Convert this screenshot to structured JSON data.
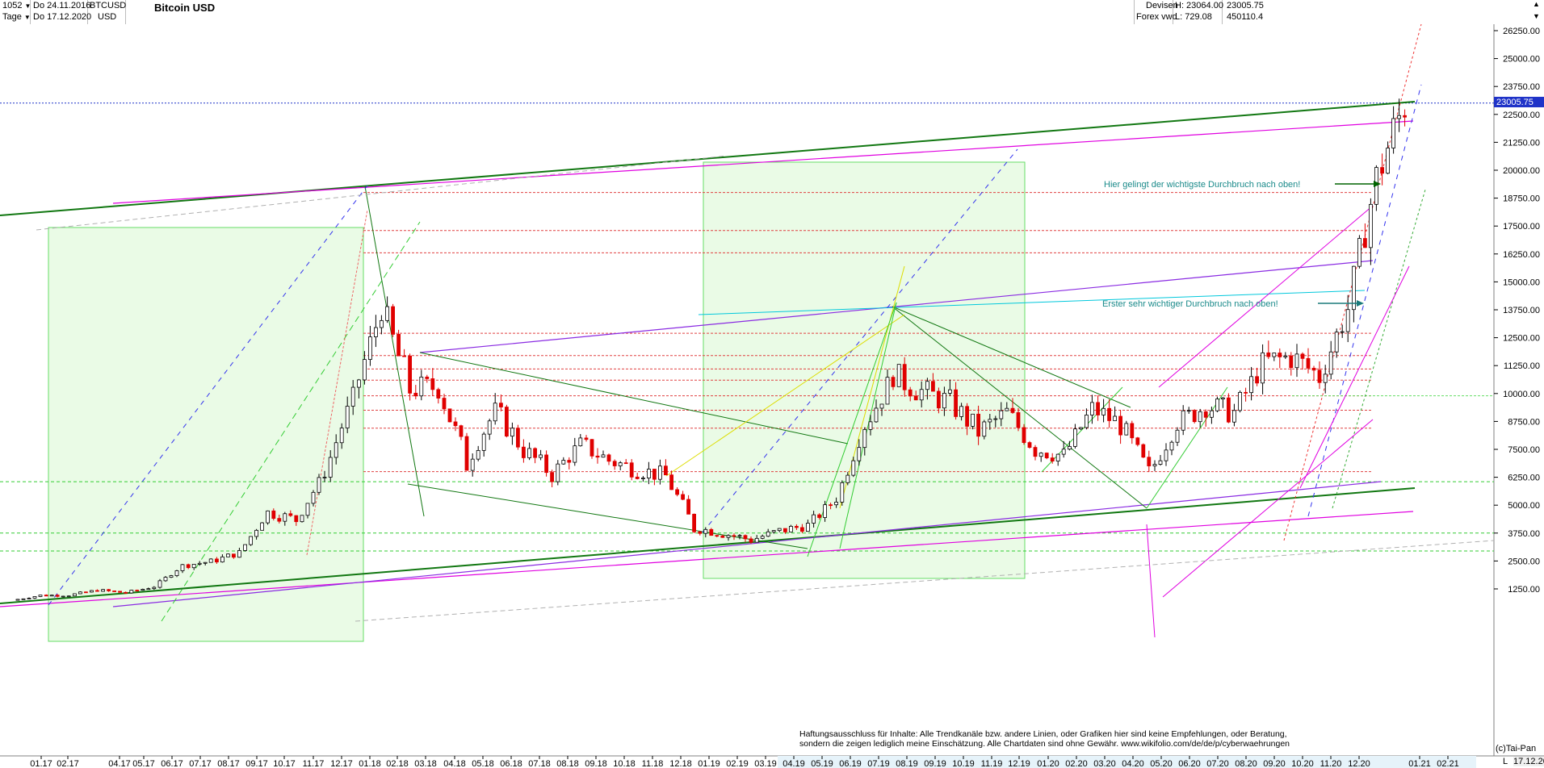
{
  "header": {
    "bar_count": "1052",
    "interval": "Tage",
    "start_date": "Do 24.11.2016",
    "end_date": "Do 17.12.2020",
    "symbol": "BTCUSD",
    "currency": "USD",
    "title": "Bitcoin USD",
    "market": "Devisen",
    "source": "Forex vwd",
    "high": "H: 23064.00",
    "low": "L: 729.08",
    "last": "23005.75",
    "volume": "450110.4",
    "scroll_up": "▲",
    "scroll_down": "▼"
  },
  "annotations": {
    "breakout_main": "Hier gelingt der wichtigste Durchbruch nach oben!",
    "breakout_first": "Erster sehr wichtiger Durchbruch nach oben!"
  },
  "footer": {
    "disclaimer_line1": "Haftungsausschluss für Inhalte: Alle Trendkanäle bzw. andere Linien, oder Grafiken hier sind keine Empfehlungen, oder Beratung,",
    "disclaimer_line2": "sondern die zeigen lediglich meine  Einschätzung. Alle Chartdaten sind ohne Gewähr.  www.wikifolio.com/de/de/p/cyberwaehrungen",
    "copyright": "(c)Tai-Pan",
    "corner_left": "L",
    "corner_right": "17.12.20"
  },
  "colors": {
    "up": "#000000",
    "down": "#e00000",
    "green_trend": "#006400",
    "magenta": "#e000e0",
    "purple": "#8a2be2",
    "cyan": "#00c8dc",
    "last_price_box": "#1f33c8",
    "box_fill": "#eafbe6"
  },
  "chart_data": {
    "type": "candlestick",
    "title": "Bitcoin USD",
    "currency": "USD",
    "period": "daily",
    "y_axis_ticks": [
      26250,
      25000,
      23750,
      22500,
      21250,
      20000,
      18750,
      17500,
      16250,
      15000,
      13750,
      12500,
      11250,
      10000,
      8750,
      7500,
      6250,
      5000,
      3750,
      2500,
      1250
    ],
    "ylim": [
      0,
      26800
    ],
    "x_axis_ticks": [
      "01.17",
      "02.17",
      "04.17",
      "05.17",
      "06.17",
      "07.17",
      "08.17",
      "09.17",
      "10.17",
      "11.17",
      "12.17",
      "01.18",
      "02.18",
      "03.18",
      "04.18",
      "05.18",
      "06.18",
      "07.18",
      "08.18",
      "09.18",
      "10.18",
      "11.18",
      "12.18",
      "01.19",
      "02.19",
      "03.19",
      "04.19",
      "05.19",
      "06.19",
      "07.19",
      "08.19",
      "09.19",
      "10.19",
      "11.19",
      "12.19",
      "01.20",
      "02.20",
      "03.20",
      "04.20",
      "05.20",
      "06.20",
      "07.20",
      "08.20",
      "09.20",
      "10.20",
      "11.20",
      "12.20",
      "01.21",
      "02.21"
    ],
    "last_price": 23005.75,
    "high": 23064.0,
    "low": 729.08,
    "approx_monthly_close": [
      {
        "date": "2016-11",
        "close": 740
      },
      {
        "date": "2016-12",
        "close": 960
      },
      {
        "date": "2017-01",
        "close": 970
      },
      {
        "date": "2017-02",
        "close": 1190
      },
      {
        "date": "2017-03",
        "close": 1080
      },
      {
        "date": "2017-04",
        "close": 1350
      },
      {
        "date": "2017-05",
        "close": 2300
      },
      {
        "date": "2017-06",
        "close": 2480
      },
      {
        "date": "2017-07",
        "close": 2870
      },
      {
        "date": "2017-08",
        "close": 4700
      },
      {
        "date": "2017-09",
        "close": 4340
      },
      {
        "date": "2017-10",
        "close": 6450
      },
      {
        "date": "2017-11",
        "close": 9900
      },
      {
        "date": "2017-12",
        "close": 13800
      },
      {
        "date": "2018-01",
        "close": 10200
      },
      {
        "date": "2018-02",
        "close": 10300
      },
      {
        "date": "2018-03",
        "close": 6900
      },
      {
        "date": "2018-04",
        "close": 9250
      },
      {
        "date": "2018-05",
        "close": 7500
      },
      {
        "date": "2018-06",
        "close": 6390
      },
      {
        "date": "2018-07",
        "close": 7730
      },
      {
        "date": "2018-08",
        "close": 7000
      },
      {
        "date": "2018-09",
        "close": 6600
      },
      {
        "date": "2018-10",
        "close": 6300
      },
      {
        "date": "2018-11",
        "close": 4000
      },
      {
        "date": "2018-12",
        "close": 3740
      },
      {
        "date": "2019-01",
        "close": 3450
      },
      {
        "date": "2019-02",
        "close": 3850
      },
      {
        "date": "2019-03",
        "close": 4100
      },
      {
        "date": "2019-04",
        "close": 5300
      },
      {
        "date": "2019-05",
        "close": 8550
      },
      {
        "date": "2019-06",
        "close": 10800
      },
      {
        "date": "2019-07",
        "close": 10100
      },
      {
        "date": "2019-08",
        "close": 9600
      },
      {
        "date": "2019-09",
        "close": 8300
      },
      {
        "date": "2019-10",
        "close": 9150
      },
      {
        "date": "2019-11",
        "close": 7550
      },
      {
        "date": "2019-12",
        "close": 7200
      },
      {
        "date": "2020-01",
        "close": 9350
      },
      {
        "date": "2020-02",
        "close": 8600
      },
      {
        "date": "2020-03",
        "close": 6400
      },
      {
        "date": "2020-04",
        "close": 8650
      },
      {
        "date": "2020-05",
        "close": 9450
      },
      {
        "date": "2020-06",
        "close": 9150
      },
      {
        "date": "2020-07",
        "close": 11350
      },
      {
        "date": "2020-08",
        "close": 11650
      },
      {
        "date": "2020-09",
        "close": 10780
      },
      {
        "date": "2020-10",
        "close": 13800
      },
      {
        "date": "2020-11",
        "close": 19700
      },
      {
        "date": "2020-12-17",
        "close": 23005.75
      }
    ]
  }
}
